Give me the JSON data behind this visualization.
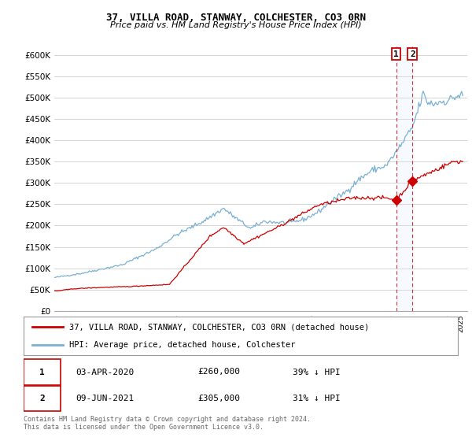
{
  "title1": "37, VILLA ROAD, STANWAY, COLCHESTER, CO3 0RN",
  "title2": "Price paid vs. HM Land Registry's House Price Index (HPI)",
  "ylabel_ticks": [
    "£0",
    "£50K",
    "£100K",
    "£150K",
    "£200K",
    "£250K",
    "£300K",
    "£350K",
    "£400K",
    "£450K",
    "£500K",
    "£550K",
    "£600K"
  ],
  "ytick_values": [
    0,
    50000,
    100000,
    150000,
    200000,
    250000,
    300000,
    350000,
    400000,
    450000,
    500000,
    550000,
    600000
  ],
  "ylim": [
    0,
    620000
  ],
  "xlim_start": 1995.0,
  "xlim_end": 2025.5,
  "legend_line1": "37, VILLA ROAD, STANWAY, COLCHESTER, CO3 0RN (detached house)",
  "legend_line2": "HPI: Average price, detached house, Colchester",
  "annotation1_date": "03-APR-2020",
  "annotation1_price": "£260,000",
  "annotation1_pct": "39% ↓ HPI",
  "annotation2_date": "09-JUN-2021",
  "annotation2_price": "£305,000",
  "annotation2_pct": "31% ↓ HPI",
  "footer": "Contains HM Land Registry data © Crown copyright and database right 2024.\nThis data is licensed under the Open Government Licence v3.0.",
  "price_color": "#cc0000",
  "hpi_color": "#7ab0d4",
  "shade_color": "#ddeeff",
  "annotation_vline_color": "#cc0000",
  "ann1_x": 2020.25,
  "ann1_y": 260000,
  "ann2_x": 2021.45,
  "ann2_y": 305000,
  "background_color": "#ffffff",
  "grid_color": "#cccccc"
}
